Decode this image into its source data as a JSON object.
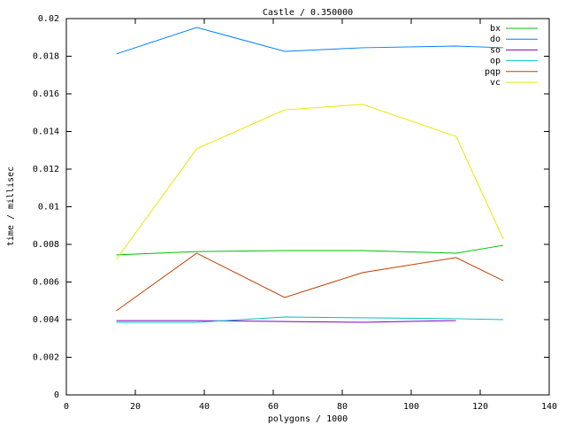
{
  "chart_data": {
    "type": "line",
    "title": "Castle / 0.350000",
    "x_label": "polygons / 1000",
    "y_label": "time / millisec",
    "x": [
      14.5,
      37.8,
      63.3,
      85.9,
      113,
      126.7
    ],
    "xlim": [
      0,
      140
    ],
    "xticks": [
      0,
      20,
      40,
      60,
      80,
      100,
      120,
      140
    ],
    "ylim": [
      0,
      0.02
    ],
    "yticks": [
      0,
      0.002,
      0.004,
      0.006,
      0.008,
      0.01,
      0.012,
      0.014,
      0.016,
      0.018,
      0.02
    ],
    "grid": false,
    "legend": "top-right",
    "series": [
      {
        "name": "bx",
        "color": "#00c000",
        "values": [
          0.00744,
          0.00762,
          0.00767,
          0.00767,
          0.00753,
          0.00795
        ]
      },
      {
        "name": "do",
        "color": "#0080ff",
        "values": [
          0.01812,
          0.01953,
          0.01826,
          0.01845,
          0.01854,
          0.01845
        ]
      },
      {
        "name": "so",
        "color": "#8000c0",
        "values": [
          0.00395,
          0.00395,
          0.0039,
          0.00386,
          0.00395,
          null
        ]
      },
      {
        "name": "op",
        "color": "#00c0c0",
        "values": [
          0.00386,
          0.00386,
          0.00414,
          0.0041,
          0.00405,
          0.004
        ]
      },
      {
        "name": "pqp",
        "color": "#c04000",
        "values": [
          0.00447,
          0.00753,
          0.00518,
          0.0065,
          0.0073,
          0.00607
        ]
      },
      {
        "name": "vc",
        "color": "#e8e800",
        "values": [
          0.0072,
          0.01308,
          0.01515,
          0.01544,
          0.01374,
          0.00828
        ]
      }
    ]
  }
}
